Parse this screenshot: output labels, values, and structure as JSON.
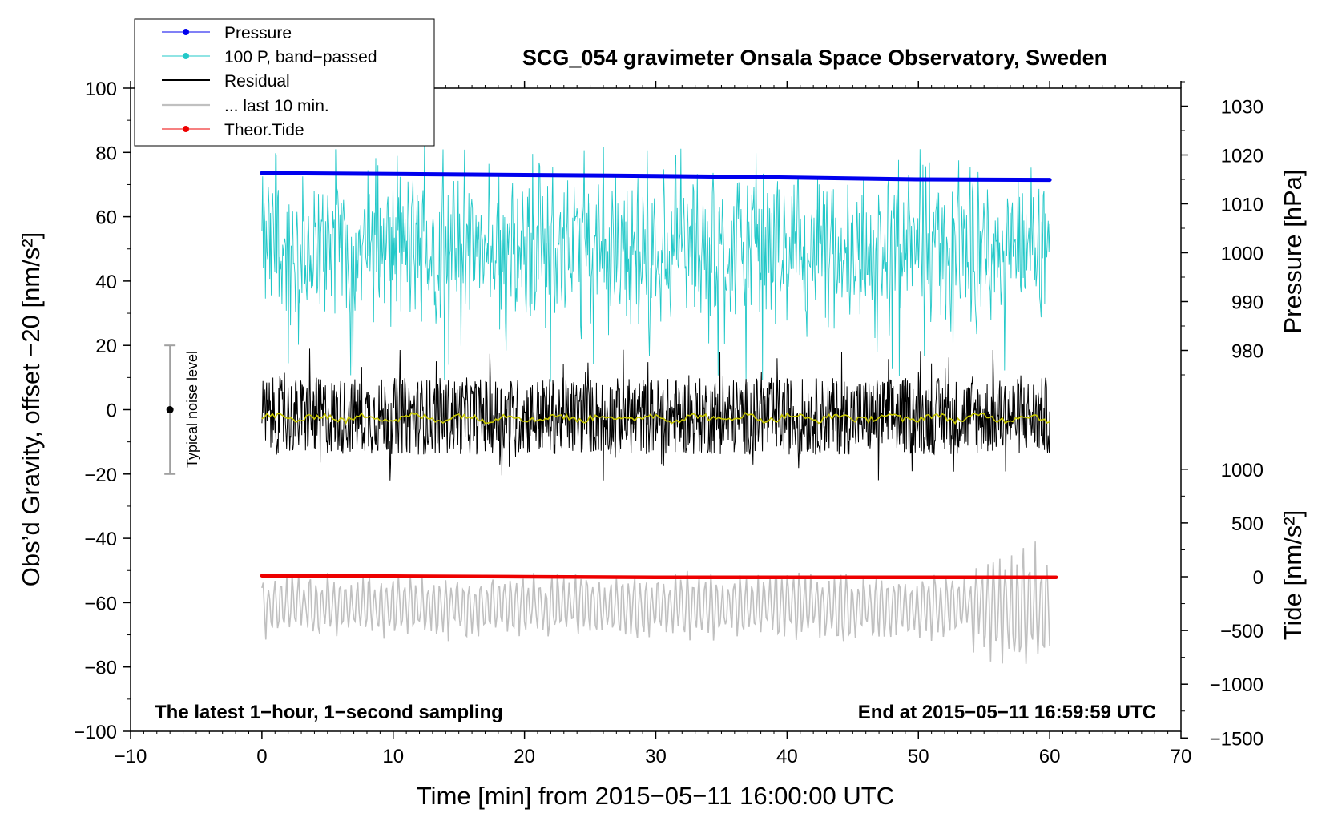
{
  "chart_data": {
    "type": "line",
    "title": "SCG_054 gravimeter Onsala Space Observatory, Sweden",
    "xlabel": "Time [min] from 2015−05−11 16:00:00 UTC",
    "ylabel": "Obs’d Gravity, offset −20 [nm/s²]",
    "ylabel_right_top": "Pressure [hPa]",
    "ylabel_right_bottom": "Tide [nm/s²]",
    "xlim": [
      -10,
      70
    ],
    "ylim": [
      -100,
      100
    ],
    "pressure_lim": [
      970,
      1035
    ],
    "tide_lim": [
      -1500,
      1000
    ],
    "x_ticks": [
      "−10",
      "0",
      "10",
      "20",
      "30",
      "40",
      "50",
      "60",
      "70"
    ],
    "x_tick_values": [
      -10,
      0,
      10,
      20,
      30,
      40,
      50,
      60,
      70
    ],
    "y_ticks": [
      "100",
      "80",
      "60",
      "40",
      "20",
      "0",
      "−20",
      "−40",
      "−60",
      "−80",
      "−100"
    ],
    "y_tick_values": [
      100,
      80,
      60,
      40,
      20,
      0,
      -20,
      -40,
      -60,
      -80,
      -100
    ],
    "pressure_ticks": [
      "1030",
      "1020",
      "1010",
      "1000",
      "990",
      "980"
    ],
    "pressure_tick_values": [
      1030,
      1020,
      1010,
      1000,
      990,
      980
    ],
    "tide_ticks": [
      "1000",
      "500",
      "0",
      "−500",
      "−1000",
      "−1500"
    ],
    "tide_tick_values": [
      1000,
      500,
      0,
      -500,
      -1000,
      -1500
    ],
    "legend": {
      "position": "top-left",
      "entries": [
        {
          "label": "Pressure",
          "color": "#0000ee",
          "marker": "dot"
        },
        {
          "label": "100 P, band−passed",
          "color": "#22c8c8",
          "marker": "dot"
        },
        {
          "label": "Residual",
          "color": "#000000",
          "marker": "none"
        },
        {
          "label": "... last 10 min.",
          "color": "#c0c0c0",
          "marker": "none"
        },
        {
          "label": "Theor.Tide",
          "color": "#ee0000",
          "marker": "dot"
        }
      ]
    },
    "annotation_left": "The latest 1−hour, 1−second sampling",
    "annotation_right": "End at 2015−05−11 16:59:59 UTC",
    "noise_label": "Typical noise level",
    "noise_bar": {
      "x": -7,
      "center": 0,
      "half_range": 20
    },
    "series": [
      {
        "name": "Pressure",
        "axis": "pressure",
        "color": "#0000ee",
        "x": [
          0,
          10,
          20,
          30,
          40,
          50,
          60
        ],
        "values": [
          1016.3,
          1016.1,
          1015.9,
          1015.7,
          1015.4,
          1015.0,
          1014.9
        ]
      },
      {
        "name": "100 P, band−passed",
        "axis": "gravity",
        "color": "#22c8c8",
        "x_range": [
          0,
          60
        ],
        "mean": 50,
        "amplitude": 18,
        "spike_min": 8,
        "spike_max": 82
      },
      {
        "name": "Residual",
        "axis": "gravity",
        "color": "#000000",
        "x_range": [
          0,
          60
        ],
        "mean": -2,
        "amplitude": 12,
        "spike_min": -22,
        "spike_max": 21
      },
      {
        "name": "Residual smoothed",
        "axis": "gravity",
        "color": "#c8c800",
        "x_range": [
          0,
          60
        ],
        "mean": -2.5,
        "amplitude": 1
      },
      {
        "name": "... last 10 min.",
        "axis": "gravity",
        "color": "#c0c0c0",
        "x_range": [
          0,
          60
        ],
        "mean": -61,
        "amplitude": 8,
        "spike_min": -81,
        "spike_max": -41
      },
      {
        "name": "Theor.Tide",
        "axis": "tide",
        "color": "#ee0000",
        "x": [
          0,
          10,
          20,
          30,
          40,
          50,
          60.5
        ],
        "values": [
          10,
          5,
          0,
          -5,
          -5,
          -5,
          -5
        ]
      }
    ]
  }
}
